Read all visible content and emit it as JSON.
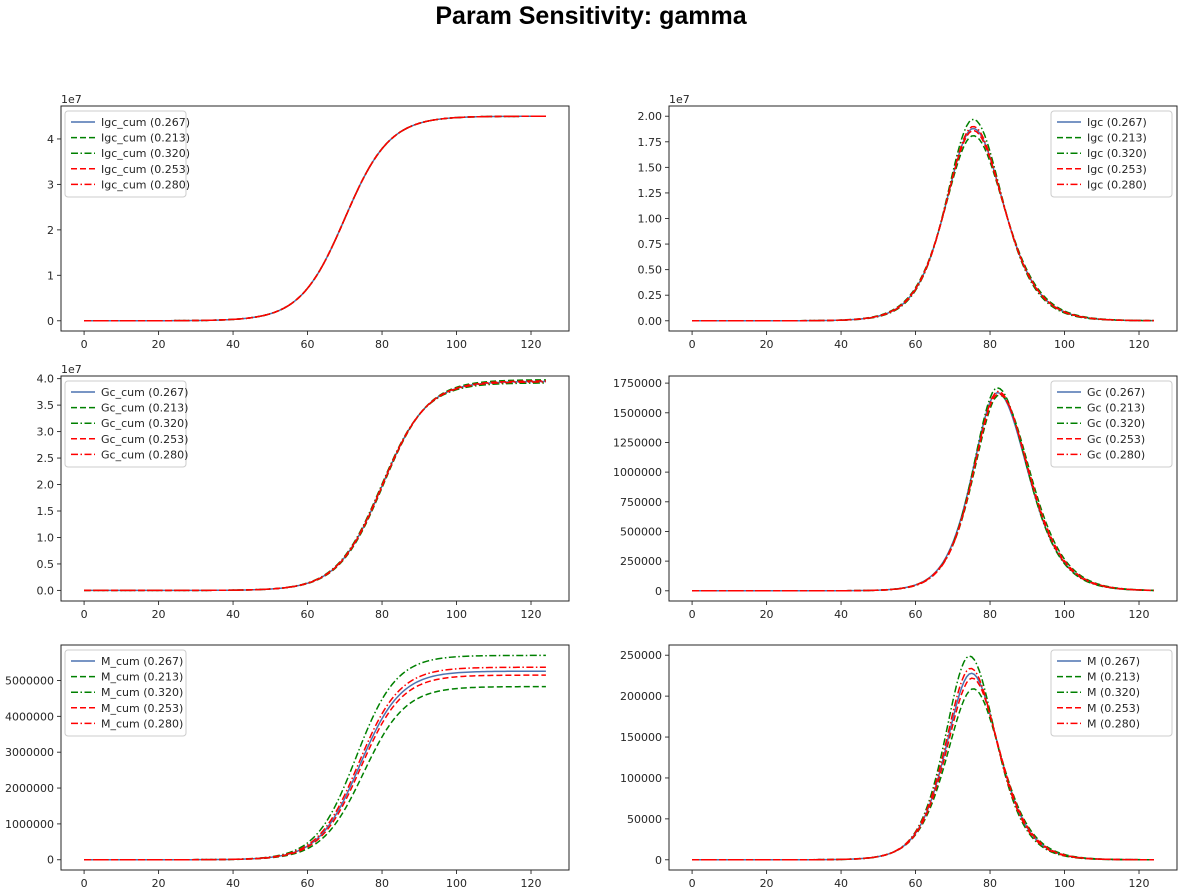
{
  "figure": {
    "title": "Param Sensitivity: gamma"
  },
  "style": {
    "series_colors": [
      "#4c72b0",
      "#008000",
      "#008000",
      "#ff0000",
      "#ff0000"
    ],
    "series_dashes": [
      "solid",
      "dashed",
      "dashdot",
      "dashed",
      "dashdot"
    ],
    "axes_color": "#262626",
    "legend_border": "#cccccc"
  },
  "chart_data": [
    {
      "type": "line",
      "legend_position": "top-left",
      "offset_label": "1e7",
      "xlim": [
        -6.2,
        130.2
      ],
      "ylim": [
        -2250000,
        47250000
      ],
      "x_ticks": [
        0,
        20,
        40,
        60,
        80,
        100,
        120
      ],
      "y_ticks": [
        0,
        10000000,
        20000000,
        30000000,
        40000000
      ],
      "y_tick_labels": [
        "0",
        "1",
        "2",
        "3",
        "4"
      ],
      "curve_model": "logistic",
      "series": [
        {
          "name": "Igc_cum (0.267)",
          "x_range": [
            0,
            124
          ],
          "plateau": 45000000,
          "midpoint": 70,
          "scale": 6.0
        },
        {
          "name": "Igc_cum (0.213)",
          "x_range": [
            0,
            124
          ],
          "plateau": 45000000,
          "midpoint": 70,
          "scale": 6.0
        },
        {
          "name": "Igc_cum (0.320)",
          "x_range": [
            0,
            124
          ],
          "plateau": 45000000,
          "midpoint": 70,
          "scale": 6.0
        },
        {
          "name": "Igc_cum (0.253)",
          "x_range": [
            0,
            124
          ],
          "plateau": 45000000,
          "midpoint": 70,
          "scale": 6.0
        },
        {
          "name": "Igc_cum (0.280)",
          "x_range": [
            0,
            124
          ],
          "plateau": 45000000,
          "midpoint": 70,
          "scale": 6.0
        }
      ]
    },
    {
      "type": "line",
      "legend_position": "top-right",
      "offset_label": "1e7",
      "xlim": [
        -6.2,
        130.2
      ],
      "ylim": [
        -1000000,
        21000000
      ],
      "x_ticks": [
        0,
        20,
        40,
        60,
        80,
        100,
        120
      ],
      "y_ticks": [
        0,
        2500000,
        5000000,
        7500000,
        10000000,
        12500000,
        15000000,
        17500000,
        20000000
      ],
      "y_tick_labels": [
        "0.00",
        "0.25",
        "0.50",
        "0.75",
        "1.00",
        "1.25",
        "1.50",
        "1.75",
        "2.00"
      ],
      "curve_model": "peak",
      "series": [
        {
          "name": "Igc (0.267)",
          "x_range": [
            0,
            124
          ],
          "peak_x": 75.5,
          "peak_y": 18800000,
          "width_left": 10,
          "width_right": 11
        },
        {
          "name": "Igc (0.213)",
          "x_range": [
            0,
            124
          ],
          "peak_x": 75.5,
          "peak_y": 18100000,
          "width_left": 10.3,
          "width_right": 11.4
        },
        {
          "name": "Igc (0.320)",
          "x_range": [
            0,
            124
          ],
          "peak_x": 75.5,
          "peak_y": 19700000,
          "width_left": 9.7,
          "width_right": 10.6
        },
        {
          "name": "Igc (0.253)",
          "x_range": [
            0,
            124
          ],
          "peak_x": 75.5,
          "peak_y": 18600000,
          "width_left": 10.1,
          "width_right": 11.1
        },
        {
          "name": "Igc (0.280)",
          "x_range": [
            0,
            124
          ],
          "peak_x": 75.5,
          "peak_y": 19000000,
          "width_left": 9.9,
          "width_right": 10.9
        }
      ]
    },
    {
      "type": "line",
      "legend_position": "top-left",
      "offset_label": "1e7",
      "xlim": [
        -6.2,
        130.2
      ],
      "ylim": [
        -2000000,
        40500000
      ],
      "x_ticks": [
        0,
        20,
        40,
        60,
        80,
        100,
        120
      ],
      "y_ticks": [
        0,
        5000000,
        10000000,
        15000000,
        20000000,
        25000000,
        30000000,
        35000000,
        40000000
      ],
      "y_tick_labels": [
        "0.0",
        "0.5",
        "1.0",
        "1.5",
        "2.0",
        "2.5",
        "3.0",
        "3.5",
        "4.0"
      ],
      "curve_model": "logistic",
      "series": [
        {
          "name": "Gc_cum (0.267)",
          "x_range": [
            0,
            124
          ],
          "plateau": 39500000,
          "midpoint": 80,
          "scale": 6.0
        },
        {
          "name": "Gc_cum (0.213)",
          "x_range": [
            0,
            124
          ],
          "plateau": 39800000,
          "midpoint": 80.3,
          "scale": 6.0
        },
        {
          "name": "Gc_cum (0.320)",
          "x_range": [
            0,
            124
          ],
          "plateau": 39200000,
          "midpoint": 79.7,
          "scale": 6.0
        },
        {
          "name": "Gc_cum (0.253)",
          "x_range": [
            0,
            124
          ],
          "plateau": 39600000,
          "midpoint": 80.1,
          "scale": 6.0
        },
        {
          "name": "Gc_cum (0.280)",
          "x_range": [
            0,
            124
          ],
          "plateau": 39400000,
          "midpoint": 79.9,
          "scale": 6.0
        }
      ]
    },
    {
      "type": "line",
      "legend_position": "top-right",
      "offset_label": "",
      "xlim": [
        -6.2,
        130.2
      ],
      "ylim": [
        -86000,
        1810000
      ],
      "x_ticks": [
        0,
        20,
        40,
        60,
        80,
        100,
        120
      ],
      "y_ticks": [
        0,
        250000,
        500000,
        750000,
        1000000,
        1250000,
        1500000,
        1750000
      ],
      "y_tick_labels": [
        "0",
        "250000",
        "500000",
        "750000",
        "1000000",
        "1250000",
        "1500000",
        "1750000"
      ],
      "curve_model": "peak",
      "series": [
        {
          "name": "Gc (0.267)",
          "x_range": [
            0,
            124
          ],
          "peak_x": 82,
          "peak_y": 1670000,
          "width_left": 9,
          "width_right": 11
        },
        {
          "name": "Gc (0.213)",
          "x_range": [
            0,
            124
          ],
          "peak_x": 82.5,
          "peak_y": 1650000,
          "width_left": 9.2,
          "width_right": 11.2
        },
        {
          "name": "Gc (0.320)",
          "x_range": [
            0,
            124
          ],
          "peak_x": 82,
          "peak_y": 1710000,
          "width_left": 8.8,
          "width_right": 10.8
        },
        {
          "name": "Gc (0.253)",
          "x_range": [
            0,
            124
          ],
          "peak_x": 82.3,
          "peak_y": 1660000,
          "width_left": 9.1,
          "width_right": 11.1
        },
        {
          "name": "Gc (0.280)",
          "x_range": [
            0,
            124
          ],
          "peak_x": 82.2,
          "peak_y": 1680000,
          "width_left": 8.9,
          "width_right": 10.9
        }
      ]
    },
    {
      "type": "line",
      "legend_position": "top-left",
      "offset_label": "",
      "xlim": [
        -6.2,
        130.2
      ],
      "ylim": [
        -286000,
        5990000
      ],
      "x_ticks": [
        0,
        20,
        40,
        60,
        80,
        100,
        120
      ],
      "y_ticks": [
        0,
        1000000,
        2000000,
        3000000,
        4000000,
        5000000
      ],
      "y_tick_labels": [
        "0",
        "1000000",
        "2000000",
        "3000000",
        "4000000",
        "5000000"
      ],
      "curve_model": "logistic",
      "series": [
        {
          "name": "M_cum (0.267)",
          "x_range": [
            0,
            124
          ],
          "plateau": 5260000,
          "midpoint": 74,
          "scale": 5.5
        },
        {
          "name": "M_cum (0.213)",
          "x_range": [
            0,
            124
          ],
          "plateau": 4830000,
          "midpoint": 75,
          "scale": 5.6
        },
        {
          "name": "M_cum (0.320)",
          "x_range": [
            0,
            124
          ],
          "plateau": 5700000,
          "midpoint": 73,
          "scale": 5.4
        },
        {
          "name": "M_cum (0.253)",
          "x_range": [
            0,
            124
          ],
          "plateau": 5150000,
          "midpoint": 74.3,
          "scale": 5.5
        },
        {
          "name": "M_cum (0.280)",
          "x_range": [
            0,
            124
          ],
          "plateau": 5370000,
          "midpoint": 73.7,
          "scale": 5.5
        }
      ]
    },
    {
      "type": "line",
      "legend_position": "top-right",
      "offset_label": "",
      "xlim": [
        -6.2,
        130.2
      ],
      "ylim": [
        -12500,
        262500
      ],
      "x_ticks": [
        0,
        20,
        40,
        60,
        80,
        100,
        120
      ],
      "y_ticks": [
        0,
        50000,
        100000,
        150000,
        200000,
        250000
      ],
      "y_tick_labels": [
        "0",
        "50000",
        "100000",
        "150000",
        "200000",
        "250000"
      ],
      "curve_model": "peak",
      "series": [
        {
          "name": "M (0.267)",
          "x_range": [
            0,
            124
          ],
          "peak_x": 75,
          "peak_y": 228000,
          "width_left": 9.2,
          "width_right": 9.8
        },
        {
          "name": "M (0.213)",
          "x_range": [
            0,
            124
          ],
          "peak_x": 75.5,
          "peak_y": 209000,
          "width_left": 9.6,
          "width_right": 10.1
        },
        {
          "name": "M (0.320)",
          "x_range": [
            0,
            124
          ],
          "peak_x": 74.5,
          "peak_y": 249000,
          "width_left": 8.8,
          "width_right": 9.5
        },
        {
          "name": "M (0.253)",
          "x_range": [
            0,
            124
          ],
          "peak_x": 75.2,
          "peak_y": 222000,
          "width_left": 9.3,
          "width_right": 9.9
        },
        {
          "name": "M (0.280)",
          "x_range": [
            0,
            124
          ],
          "peak_x": 74.8,
          "peak_y": 234000,
          "width_left": 9.1,
          "width_right": 9.7
        }
      ]
    }
  ]
}
